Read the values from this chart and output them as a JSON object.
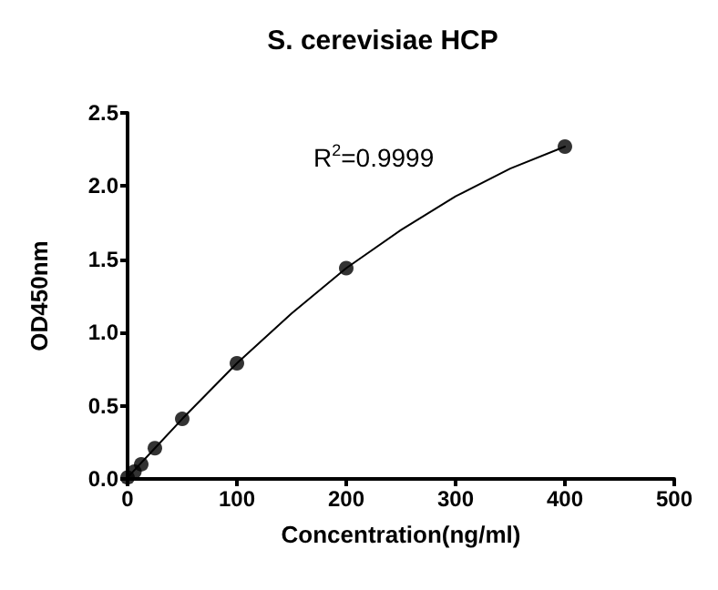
{
  "chart_data": {
    "type": "scatter",
    "title": "S. cerevisiae HCP",
    "xlabel": "Concentration(ng/ml)",
    "ylabel": "OD450nm",
    "annotations": [
      "R$^{2}$=0.9999"
    ],
    "series": [
      {
        "color": "#000000",
        "marker": "circle",
        "x": [
          0,
          6.25,
          12.5,
          25,
          50,
          100,
          200,
          400
        ],
        "values": [
          0.01,
          0.05,
          0.1,
          0.21,
          0.41,
          0.79,
          1.44,
          2.27
        ]
      },
      {
        "type": "line",
        "color": "#000000",
        "marker": "none",
        "line_style": "solid",
        "x": [
          0,
          25,
          50,
          100,
          150,
          200,
          250,
          300,
          350,
          400
        ],
        "values": [
          0.01,
          0.21,
          0.41,
          0.79,
          1.13,
          1.44,
          1.7,
          1.93,
          2.12,
          2.27
        ]
      }
    ],
    "xlim": [
      0,
      500
    ],
    "xticks": [
      0,
      100,
      200,
      300,
      400,
      500
    ],
    "ylim": [
      0,
      2.5
    ],
    "yticks": [
      {
        "value": 0,
        "label": "0.0"
      },
      0.5,
      {
        "value": 1,
        "label": "1.0"
      },
      1.5,
      {
        "value": 2,
        "label": "2.0"
      },
      2.5
    ],
    "grid": false
  }
}
